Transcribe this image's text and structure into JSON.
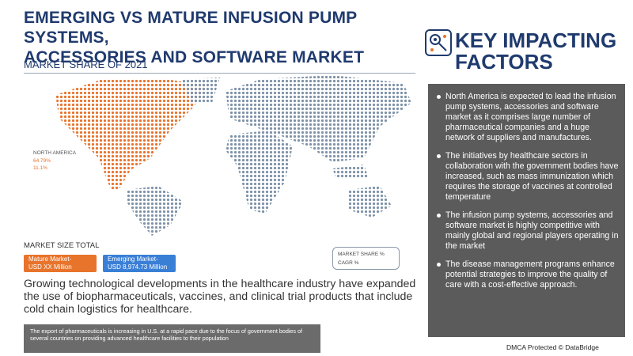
{
  "header": {
    "title_line1": "EMERGING VS MATURE INFUSION PUMP SYSTEMS,",
    "title_line2": "ACCESSORIES AND SOFTWARE MARKET",
    "subtitle": "MARKET SHARE OF 2021"
  },
  "map": {
    "region": "NORTH AMERICA",
    "share": "64.79%",
    "cagr": "11.1%"
  },
  "market_size": {
    "label": "MARKET SIZE TOTAL",
    "mature": {
      "name": "Mature Market-",
      "value": "USD  XX Million"
    },
    "emerging": {
      "name": "Emerging Market-",
      "value": "USD 8,974.73 Million"
    }
  },
  "legend": {
    "share": "MARKET SHARE %",
    "cagr": "CAGR %"
  },
  "description": "Growing technological developments in the healthcare industry have expanded the use of biopharmaceuticals, vaccines, and clinical trial products that include cold chain logistics for healthcare.",
  "footer_note": "The export of pharmaceuticals is increasing in U.S. at a rapid pace due to the focus of government bodies of several countries on providing advanced healthcare facilities to their population",
  "sidebar": {
    "title_line1": "KEY IMPACTING",
    "title_line2": "FACTORS",
    "factors": [
      "North America is expected to lead the infusion pump systems, accessories and software market as it comprises large number of pharmaceutical companies and a huge network of suppliers and manufactures.",
      "The initiatives by healthcare sectors in collaboration with the government bodies have increased, such as mass immunization which requires the storage of vaccines at controlled temperature",
      "The infusion pump systems, accessories and software market is highly competitive with mainly global and regional players operating in the market",
      "The disease management programs enhance potential strategies to improve the quality of care with a cost-effective approach."
    ]
  },
  "credit": "DMCA Protected © DataBridge"
}
